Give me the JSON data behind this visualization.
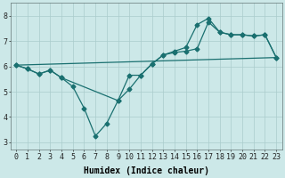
{
  "xlabel": "Humidex (Indice chaleur)",
  "bg_color": "#cce8e8",
  "line_color": "#1a7070",
  "grid_color": "#aacccc",
  "ylim": [
    2.7,
    8.5
  ],
  "xlim": [
    -0.5,
    23.5
  ],
  "yticks": [
    3,
    4,
    5,
    6,
    7,
    8
  ],
  "xticks": [
    0,
    1,
    2,
    3,
    4,
    5,
    6,
    7,
    8,
    9,
    10,
    11,
    12,
    13,
    14,
    15,
    16,
    17,
    18,
    19,
    20,
    21,
    22,
    23
  ],
  "line1_x": [
    0,
    1,
    2,
    3,
    4,
    5,
    6,
    7,
    8,
    9,
    10,
    11,
    12,
    13,
    14,
    15,
    16,
    17,
    18,
    19,
    20,
    21,
    22,
    23
  ],
  "line1_y": [
    6.05,
    5.9,
    5.7,
    5.85,
    5.55,
    5.2,
    4.35,
    3.25,
    3.75,
    4.65,
    5.65,
    5.65,
    6.1,
    6.45,
    6.55,
    6.6,
    6.7,
    7.75,
    7.35,
    7.25,
    7.25,
    7.2,
    7.25,
    6.35
  ],
  "line2_x": [
    0,
    23
  ],
  "line2_y": [
    6.05,
    6.35
  ],
  "line3_x": [
    0,
    1,
    2,
    3,
    4,
    9,
    10,
    11,
    12,
    13,
    14,
    15,
    16,
    17,
    18,
    19,
    20,
    21,
    22,
    23
  ],
  "line3_y": [
    6.05,
    5.9,
    5.7,
    5.85,
    5.55,
    4.65,
    5.1,
    5.65,
    6.1,
    6.45,
    6.6,
    6.75,
    7.65,
    7.9,
    7.35,
    7.25,
    7.25,
    7.2,
    7.25,
    6.35
  ],
  "marker_style": "D",
  "marker_size": 2.5,
  "line_width": 0.9,
  "font_size_label": 7,
  "font_size_tick": 6
}
